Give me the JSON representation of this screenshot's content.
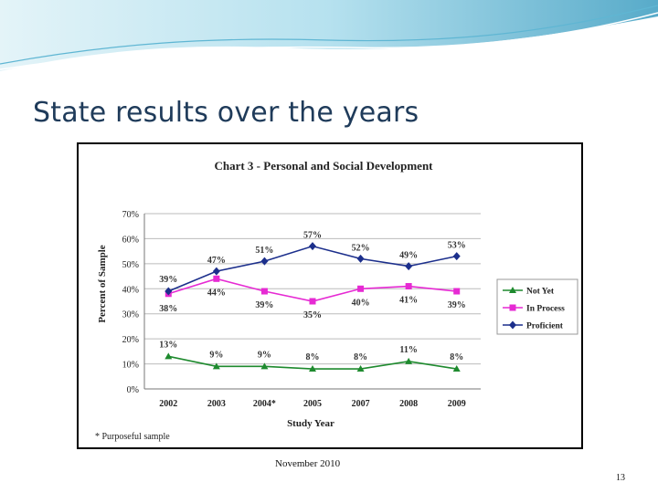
{
  "slide": {
    "title": "State results over the years",
    "footer_date": "November 2010",
    "page_number": "13",
    "colors": {
      "title": "#1f3b5a",
      "wave_light": "#bfe3ee",
      "wave_dark": "#3a9cc0"
    }
  },
  "chart_data": {
    "type": "line",
    "title": "Chart 3 - Personal and Social Development",
    "xlabel": "Study Year",
    "ylabel": "Percent of Sample",
    "categories": [
      "2002",
      "2003",
      "2004*",
      "2005",
      "2007",
      "2008",
      "2009"
    ],
    "ylim": [
      0,
      70
    ],
    "yticks": [
      "0%",
      "10%",
      "20%",
      "30%",
      "40%",
      "50%",
      "60%",
      "70%"
    ],
    "grid": true,
    "legend_position": "right",
    "footnote": "* Purposeful sample",
    "series": [
      {
        "name": "Not Yet",
        "color": "#1e8a2e",
        "marker": "triangle",
        "values": [
          13,
          9,
          9,
          8,
          8,
          11,
          8
        ],
        "labels": [
          "13%",
          "9%",
          "9%",
          "8%",
          "8%",
          "11%",
          "8%"
        ]
      },
      {
        "name": "In Process",
        "color": "#e62ad3",
        "marker": "square",
        "values": [
          38,
          44,
          39,
          35,
          40,
          41,
          39
        ],
        "labels": [
          "38%",
          "44%",
          "39%",
          "35%",
          "40%",
          "41%",
          "39%"
        ]
      },
      {
        "name": "Proficient",
        "color": "#1c2f8c",
        "marker": "diamond",
        "values": [
          39,
          47,
          51,
          57,
          52,
          49,
          53
        ],
        "labels": [
          "39%",
          "47%",
          "51%",
          "57%",
          "52%",
          "49%",
          "53%"
        ]
      }
    ]
  }
}
